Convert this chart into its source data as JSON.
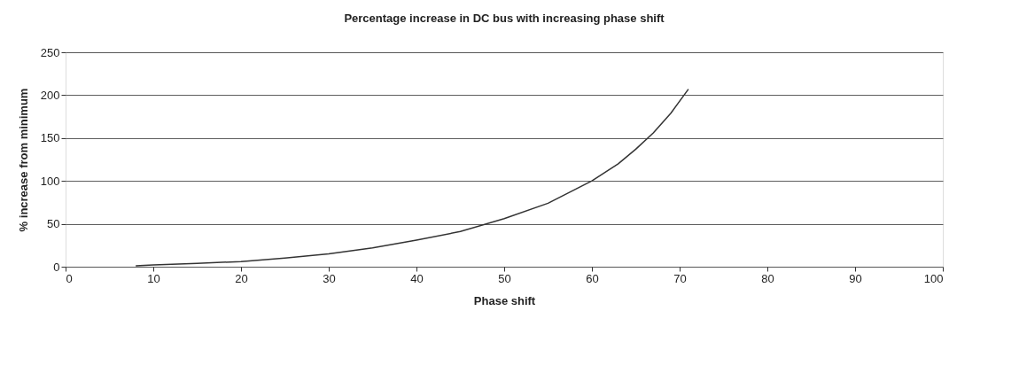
{
  "chart_data": {
    "type": "line",
    "title": "Percentage increase in DC bus with increasing phase shift",
    "xlabel": "Phase shift",
    "ylabel": "% increase from minimum",
    "x": [
      8,
      10,
      15,
      20,
      25,
      30,
      35,
      40,
      45,
      50,
      55,
      60,
      63,
      65,
      67,
      69,
      71
    ],
    "series": [
      {
        "color": "#333333",
        "values": [
          1,
          2,
          4,
          6,
          10,
          15,
          22,
          31,
          41,
          56,
          74,
          100,
          120,
          137,
          156,
          179,
          207
        ]
      }
    ],
    "xlim": [
      0,
      100
    ],
    "xticks": [
      0,
      10,
      20,
      30,
      40,
      50,
      60,
      70,
      80,
      90,
      100
    ],
    "ylim": [
      0,
      250
    ],
    "yticks": [
      0,
      50,
      100,
      150,
      200,
      250
    ],
    "grid": "y",
    "marker": "none",
    "line_style": "solid"
  }
}
